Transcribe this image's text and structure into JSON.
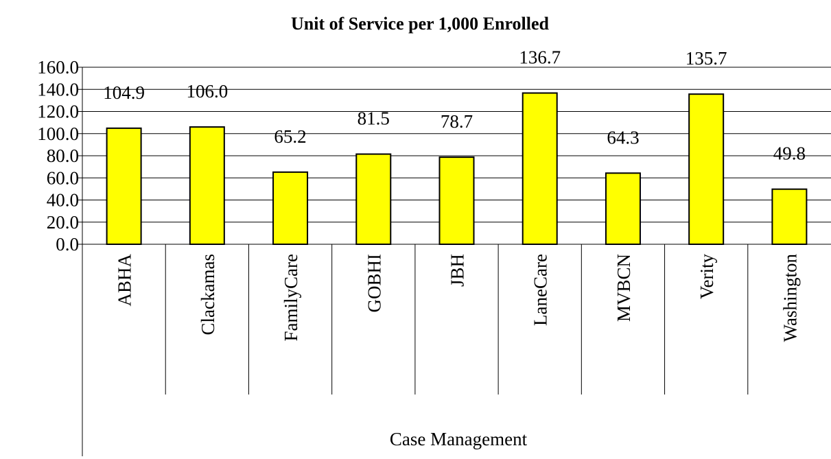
{
  "chart_data": {
    "type": "bar",
    "title": "Unit of Service per 1,000 Enrolled",
    "x_label": "Case Management",
    "categories": [
      "ABHA",
      "Clackamas",
      "FamilyCare",
      "GOBHI",
      "JBH",
      "LaneCare",
      "MVBCN",
      "Verity",
      "Washington"
    ],
    "values": [
      104.9,
      106.0,
      65.2,
      81.5,
      78.7,
      136.7,
      64.3,
      135.7,
      49.8
    ],
    "value_labels": [
      "104.9",
      "106.0",
      "65.2",
      "81.5",
      "78.7",
      "136.7",
      "64.3",
      "135.7",
      "49.8"
    ],
    "color": "#ffff00",
    "ylim": [
      0,
      160
    ],
    "yticks": [
      {
        "value": 0,
        "label": "0.0"
      },
      {
        "value": 20,
        "label": "20.0"
      },
      {
        "value": 40,
        "label": "40.0"
      },
      {
        "value": 60,
        "label": "60.0"
      },
      {
        "value": 80,
        "label": "80.0"
      },
      {
        "value": 100,
        "label": "100.0"
      },
      {
        "value": 120,
        "label": "120.0"
      },
      {
        "value": 140,
        "label": "140.0"
      },
      {
        "value": 160,
        "label": "160.0"
      }
    ],
    "grid": true
  }
}
